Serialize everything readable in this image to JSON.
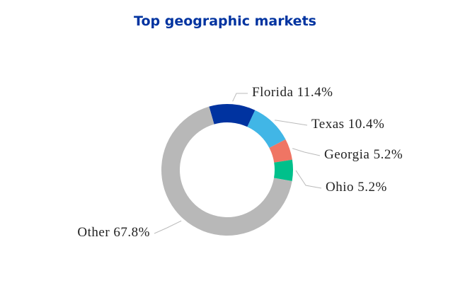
{
  "chart_data": {
    "type": "pie",
    "title": "Top geographic markets",
    "categories": [
      "Florida",
      "Texas",
      "Georgia",
      "Ohio",
      "Other"
    ],
    "values": [
      11.4,
      10.4,
      5.2,
      5.2,
      67.8
    ],
    "value_labels": [
      "11.4%",
      "10.4%",
      "5.2%",
      "5.2%",
      "67.8%"
    ],
    "colors": [
      "#0033a0",
      "#41b6e6",
      "#ef7564",
      "#00c08b",
      "#b8b8b8"
    ]
  }
}
